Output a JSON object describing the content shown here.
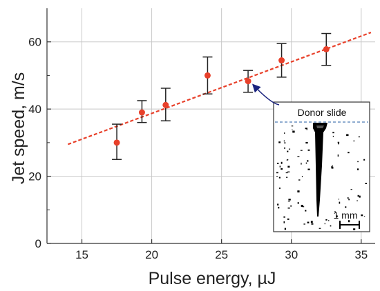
{
  "chart_data": {
    "type": "scatter",
    "title": "",
    "xlabel": "Pulse energy, µJ",
    "ylabel": "Jet speed, m/s",
    "xlim": [
      12.5,
      36
    ],
    "ylim": [
      0,
      70
    ],
    "xticks": [
      15,
      20,
      25,
      30,
      35
    ],
    "yticks": [
      0,
      20,
      40,
      60
    ],
    "grid": true,
    "series": [
      {
        "x": [
          17.5,
          19.3,
          21.0,
          24.0,
          26.9,
          29.3,
          32.5
        ],
        "y": [
          30.0,
          39.0,
          41.2,
          50.0,
          48.3,
          54.5,
          57.8
        ],
        "err_low": [
          25.0,
          36.0,
          36.5,
          44.5,
          45.0,
          49.5,
          53.0
        ],
        "err_high": [
          35.5,
          42.5,
          46.2,
          55.5,
          51.5,
          59.5,
          62.5
        ],
        "color": "#e8402a"
      }
    ],
    "fit_line": {
      "x": [
        14.0,
        35.7
      ],
      "y": [
        29.5,
        62.8
      ],
      "color": "#e8402a",
      "style": "dashed"
    },
    "inset": {
      "title": "Donor slide",
      "scale_bar_label": "1 mm",
      "arrow_target_x": 26.9,
      "arrow_target_y": 48.3,
      "arrow_color": "#1a237e"
    }
  }
}
